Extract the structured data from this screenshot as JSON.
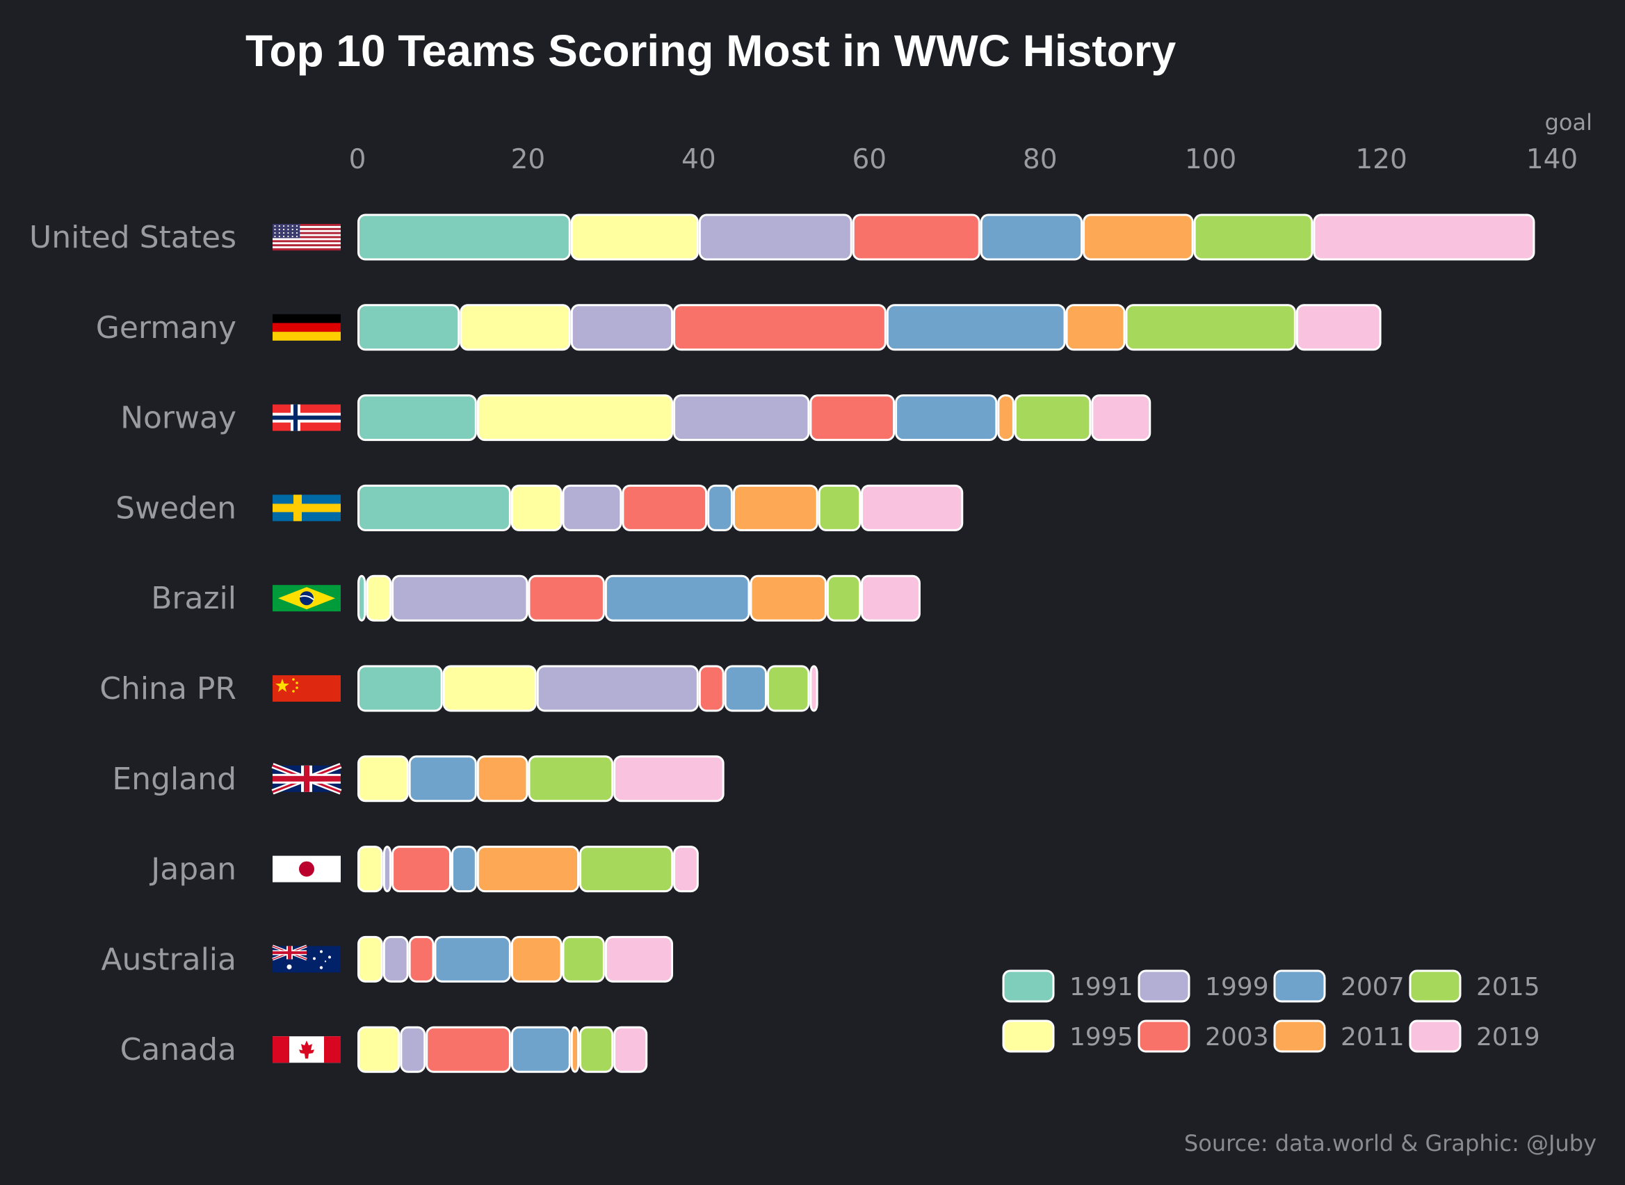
{
  "chart_data": {
    "type": "bar",
    "orientation": "horizontal",
    "stacked": true,
    "title": "Top 10 Teams Scoring Most in WWC History",
    "x_unit_label": "goal",
    "xlim": [
      0,
      140
    ],
    "x_ticks": [
      0,
      20,
      40,
      60,
      80,
      100,
      120,
      140
    ],
    "caption": "Source: data.world & Graphic: @Juby",
    "grid": false,
    "legend_position": "bottom-right",
    "categories": [
      "United States",
      "Germany",
      "Norway",
      "Sweden",
      "Brazil",
      "China PR",
      "England",
      "Japan",
      "Australia",
      "Canada"
    ],
    "series": [
      {
        "name": "1991",
        "color": "#7fcdbb",
        "values": [
          25,
          12,
          14,
          18,
          1,
          10,
          0,
          0,
          0,
          0
        ]
      },
      {
        "name": "1995",
        "color": "#ffffa0",
        "values": [
          15,
          13,
          23,
          6,
          3,
          11,
          6,
          3,
          3,
          5
        ]
      },
      {
        "name": "1999",
        "color": "#b3aed4",
        "values": [
          18,
          12,
          16,
          7,
          16,
          19,
          0,
          1,
          3,
          3
        ]
      },
      {
        "name": "2003",
        "color": "#f87269",
        "values": [
          15,
          25,
          10,
          10,
          9,
          3,
          0,
          7,
          3,
          10
        ]
      },
      {
        "name": "2007",
        "color": "#6fa3cc",
        "values": [
          12,
          21,
          12,
          3,
          17,
          5,
          8,
          3,
          9,
          7
        ]
      },
      {
        "name": "2011",
        "color": "#fda854",
        "values": [
          13,
          7,
          2,
          10,
          9,
          0,
          6,
          12,
          6,
          1
        ]
      },
      {
        "name": "2015",
        "color": "#a6d95b",
        "values": [
          14,
          20,
          9,
          5,
          4,
          5,
          10,
          11,
          5,
          4
        ]
      },
      {
        "name": "2019",
        "color": "#f9c3df",
        "values": [
          26,
          10,
          7,
          12,
          7,
          1,
          13,
          3,
          8,
          4
        ]
      }
    ],
    "flags": [
      "us-flag-icon",
      "germany-flag-icon",
      "norway-flag-icon",
      "sweden-flag-icon",
      "brazil-flag-icon",
      "china-flag-icon",
      "england-flag-icon",
      "japan-flag-icon",
      "australia-flag-icon",
      "canada-flag-icon"
    ],
    "background": "#1d1f25"
  }
}
